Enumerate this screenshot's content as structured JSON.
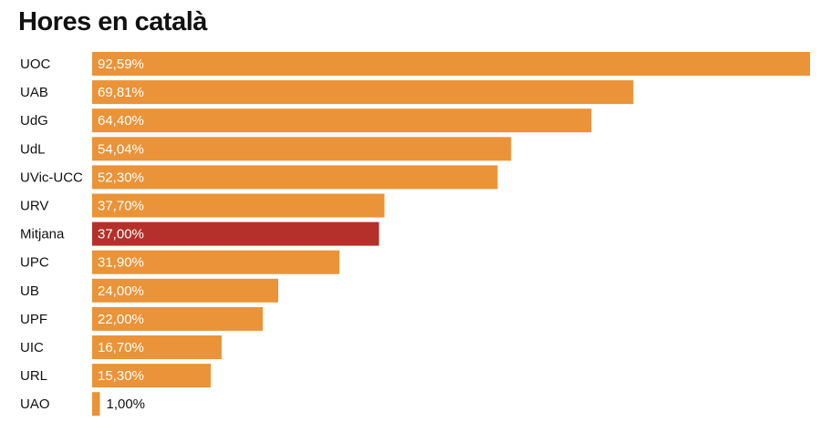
{
  "colors": {
    "bar": "#ea9338",
    "highlight": "#b5302a",
    "label_inside": "#ffffff",
    "label_outside": "#111111"
  },
  "chart_data": {
    "type": "bar",
    "orientation": "horizontal",
    "title": "Hores en català",
    "xlim": [
      0,
      100
    ],
    "grid": false,
    "legend": "none",
    "highlight_category": "Mitjana",
    "categories": [
      "UOC",
      "UAB",
      "UdG",
      "UdL",
      "UVic-UCC",
      "URV",
      "Mitjana",
      "UPC",
      "UB",
      "UPF",
      "UIC",
      "URL",
      "UAO"
    ],
    "values": [
      92.59,
      69.81,
      64.4,
      54.04,
      52.3,
      37.7,
      37.0,
      31.9,
      24.0,
      22.0,
      16.7,
      15.3,
      1.0
    ],
    "value_labels": [
      "92,59%",
      "69,81%",
      "64,40%",
      "54,04%",
      "52,30%",
      "37,70%",
      "37,00%",
      "31,90%",
      "24,00%",
      "22,00%",
      "16,70%",
      "15,30%",
      "1,00%"
    ]
  }
}
